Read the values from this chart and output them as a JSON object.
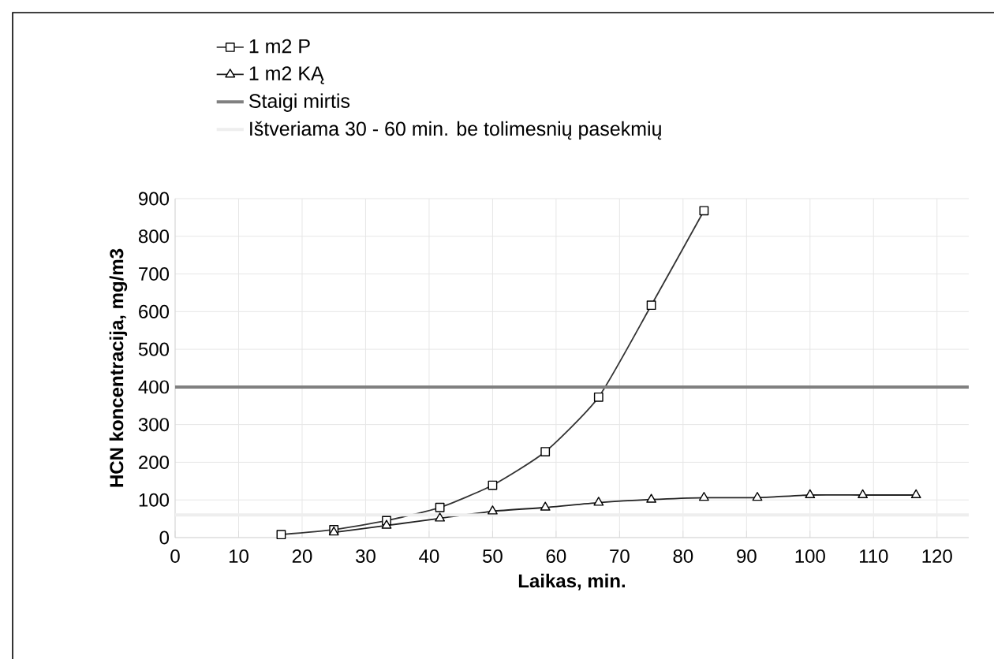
{
  "chart_data": {
    "type": "line",
    "xlabel": "Laikas, min.",
    "ylabel": "HCN koncentracija, mg/m3",
    "xlim": [
      0,
      125
    ],
    "xticks": [
      0,
      10,
      20,
      30,
      40,
      50,
      60,
      70,
      80,
      90,
      100,
      110,
      120
    ],
    "ylim": [
      0,
      900
    ],
    "yticks": [
      0,
      100,
      200,
      300,
      400,
      500,
      600,
      700,
      800,
      900
    ],
    "grid": true,
    "legend": "top left",
    "series": [
      {
        "name": "1 m2 P",
        "color": "#333333",
        "marker": "square",
        "x": [
          16.7,
          25,
          33.3,
          41.7,
          50,
          58.3,
          66.7,
          75,
          83.3
        ],
        "values": [
          8,
          21,
          45,
          80,
          139,
          228,
          373,
          617,
          868
        ]
      },
      {
        "name": "1 m2 KĄ",
        "color": "#222222",
        "marker": "triangle",
        "x": [
          25,
          33.3,
          41.7,
          50,
          58.3,
          66.7,
          75,
          83.3,
          91.7,
          100,
          108.3,
          116.7
        ],
        "values": [
          14,
          32,
          51,
          70,
          80,
          93,
          101,
          106,
          106,
          113,
          113,
          113
        ]
      }
    ],
    "ref_lines": [
      {
        "axis": "y",
        "value": 400,
        "label": "Staigi mirtis",
        "color": "#808080"
      },
      {
        "axis": "y",
        "value": 60,
        "label": "Ištveriama 30 - 60 min. be tolimesnių pasekmių",
        "color": "#eeeeee"
      }
    ]
  }
}
